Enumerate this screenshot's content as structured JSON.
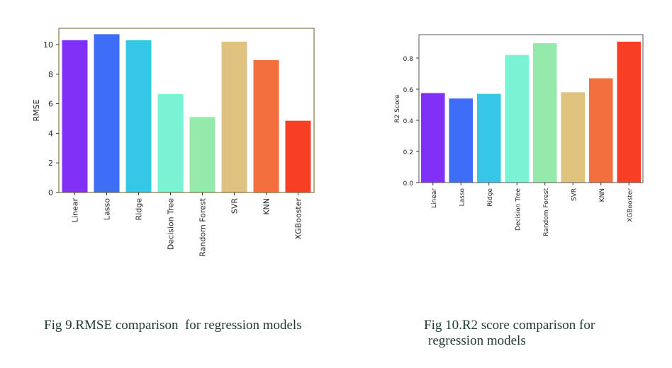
{
  "chart_data": [
    {
      "type": "bar",
      "categories": [
        "Linear",
        "Lasso",
        "Ridge",
        "Decision Tree",
        "Random Forest",
        "SVR",
        "KNN",
        "XGBooster"
      ],
      "values": [
        10.3,
        10.7,
        10.3,
        6.65,
        5.1,
        10.2,
        8.95,
        4.85
      ],
      "xlabel": "",
      "ylabel": "RMSE",
      "ylim": [
        0,
        11.1
      ],
      "yticks": [
        "0",
        "2",
        "4",
        "6",
        "8",
        "10"
      ],
      "grid": false,
      "colors": [
        "#8130f8",
        "#3f6ef6",
        "#35c6e8",
        "#7cf2d4",
        "#95e9aa",
        "#e0c27f",
        "#f3703e",
        "#f63f24"
      ]
    },
    {
      "type": "bar",
      "categories": [
        "Linear",
        "Lasso",
        "Ridge",
        "Decision Tree",
        "Random Forest",
        "SVR",
        "KNN",
        "XGBooster"
      ],
      "values": [
        0.575,
        0.54,
        0.57,
        0.82,
        0.895,
        0.58,
        0.67,
        0.905
      ],
      "xlabel": "",
      "ylabel": "R2 Score",
      "ylim": [
        0,
        0.95
      ],
      "yticks": [
        "0.0",
        "0.2",
        "0.4",
        "0.6",
        "0.8"
      ],
      "grid": false,
      "colors": [
        "#8130f8",
        "#3f6ef6",
        "#35c6e8",
        "#7cf2d4",
        "#95e9aa",
        "#e0c27f",
        "#f3703e",
        "#f63f24"
      ]
    }
  ],
  "captions": {
    "fig9": "Fig 9.RMSE comparison  for regression models",
    "fig10_line1": "Fig 10.R2 score comparison for",
    "fig10_line2": "regression models"
  }
}
